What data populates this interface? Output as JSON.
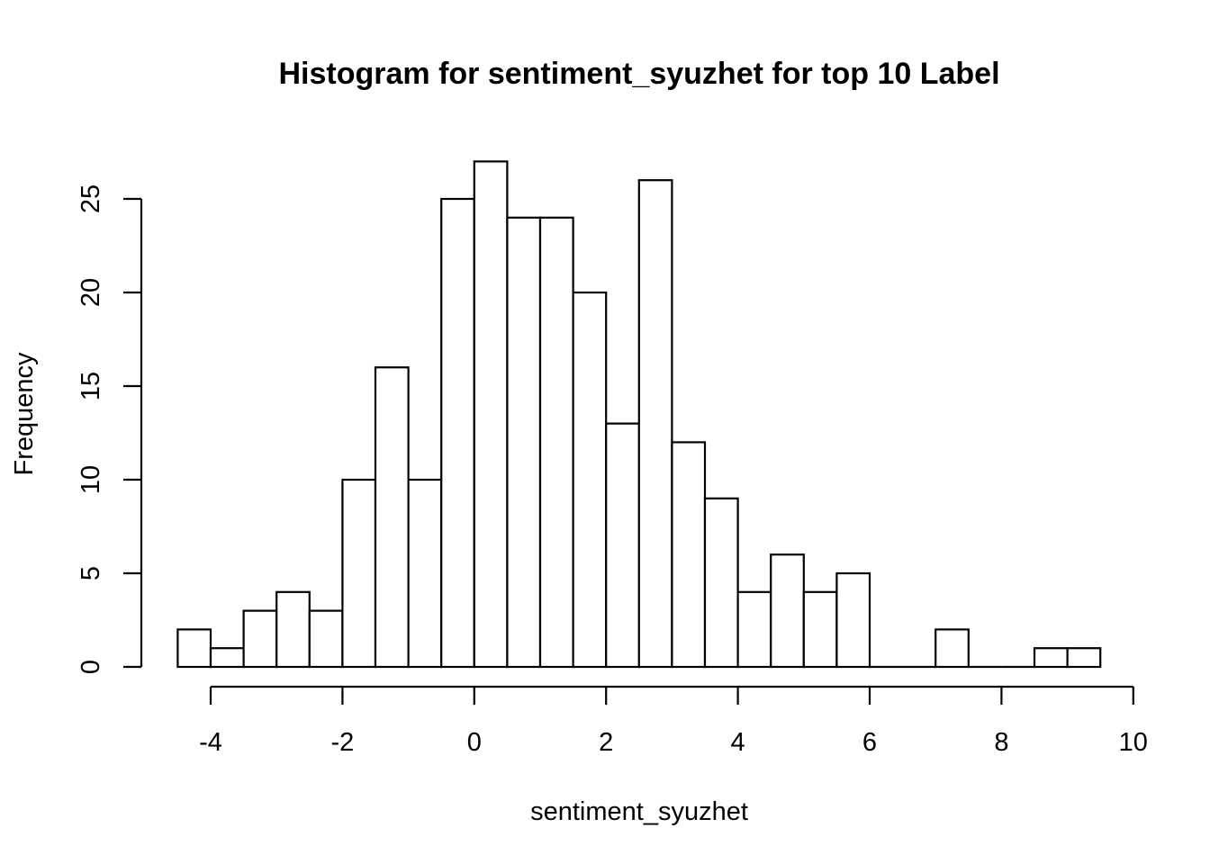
{
  "chart_data": {
    "type": "bar",
    "title": "Histogram for sentiment_syuzhet for top 10 Label",
    "xlabel": "sentiment_syuzhet",
    "ylabel": "Frequency",
    "bin_width": 0.5,
    "bins": [
      {
        "x0": -4.5,
        "x1": -4.0,
        "count": 2
      },
      {
        "x0": -4.0,
        "x1": -3.5,
        "count": 1
      },
      {
        "x0": -3.5,
        "x1": -3.0,
        "count": 3
      },
      {
        "x0": -3.0,
        "x1": -2.5,
        "count": 4
      },
      {
        "x0": -2.5,
        "x1": -2.0,
        "count": 3
      },
      {
        "x0": -2.0,
        "x1": -1.5,
        "count": 10
      },
      {
        "x0": -1.5,
        "x1": -1.0,
        "count": 16
      },
      {
        "x0": -1.0,
        "x1": -0.5,
        "count": 10
      },
      {
        "x0": -0.5,
        "x1": 0.0,
        "count": 25
      },
      {
        "x0": 0.0,
        "x1": 0.5,
        "count": 27
      },
      {
        "x0": 0.5,
        "x1": 1.0,
        "count": 24
      },
      {
        "x0": 1.0,
        "x1": 1.5,
        "count": 24
      },
      {
        "x0": 1.5,
        "x1": 2.0,
        "count": 20
      },
      {
        "x0": 2.0,
        "x1": 2.5,
        "count": 13
      },
      {
        "x0": 2.5,
        "x1": 3.0,
        "count": 26
      },
      {
        "x0": 3.0,
        "x1": 3.5,
        "count": 12
      },
      {
        "x0": 3.5,
        "x1": 4.0,
        "count": 9
      },
      {
        "x0": 4.0,
        "x1": 4.5,
        "count": 4
      },
      {
        "x0": 4.5,
        "x1": 5.0,
        "count": 6
      },
      {
        "x0": 5.0,
        "x1": 5.5,
        "count": 4
      },
      {
        "x0": 5.5,
        "x1": 6.0,
        "count": 5
      },
      {
        "x0": 6.0,
        "x1": 6.5,
        "count": 0
      },
      {
        "x0": 6.5,
        "x1": 7.0,
        "count": 0
      },
      {
        "x0": 7.0,
        "x1": 7.5,
        "count": 2
      },
      {
        "x0": 7.5,
        "x1": 8.0,
        "count": 0
      },
      {
        "x0": 8.0,
        "x1": 8.5,
        "count": 0
      },
      {
        "x0": 8.5,
        "x1": 9.0,
        "count": 1
      },
      {
        "x0": 9.0,
        "x1": 9.5,
        "count": 1
      }
    ],
    "xlim": [
      -4,
      10
    ],
    "ylim": [
      0,
      25
    ],
    "xticks": [
      -4,
      -2,
      0,
      2,
      4,
      6,
      8,
      10
    ],
    "xtick_labels": [
      "-4",
      "-2",
      "0",
      "2",
      "4",
      "6",
      "8",
      "10"
    ],
    "yticks": [
      0,
      5,
      10,
      15,
      20,
      25
    ],
    "ytick_labels": [
      "0",
      "5",
      "10",
      "15",
      "20",
      "25"
    ],
    "grid": false,
    "legend": "none",
    "colors": {
      "bar_fill": "#ffffff",
      "bar_stroke": "#000000"
    }
  }
}
